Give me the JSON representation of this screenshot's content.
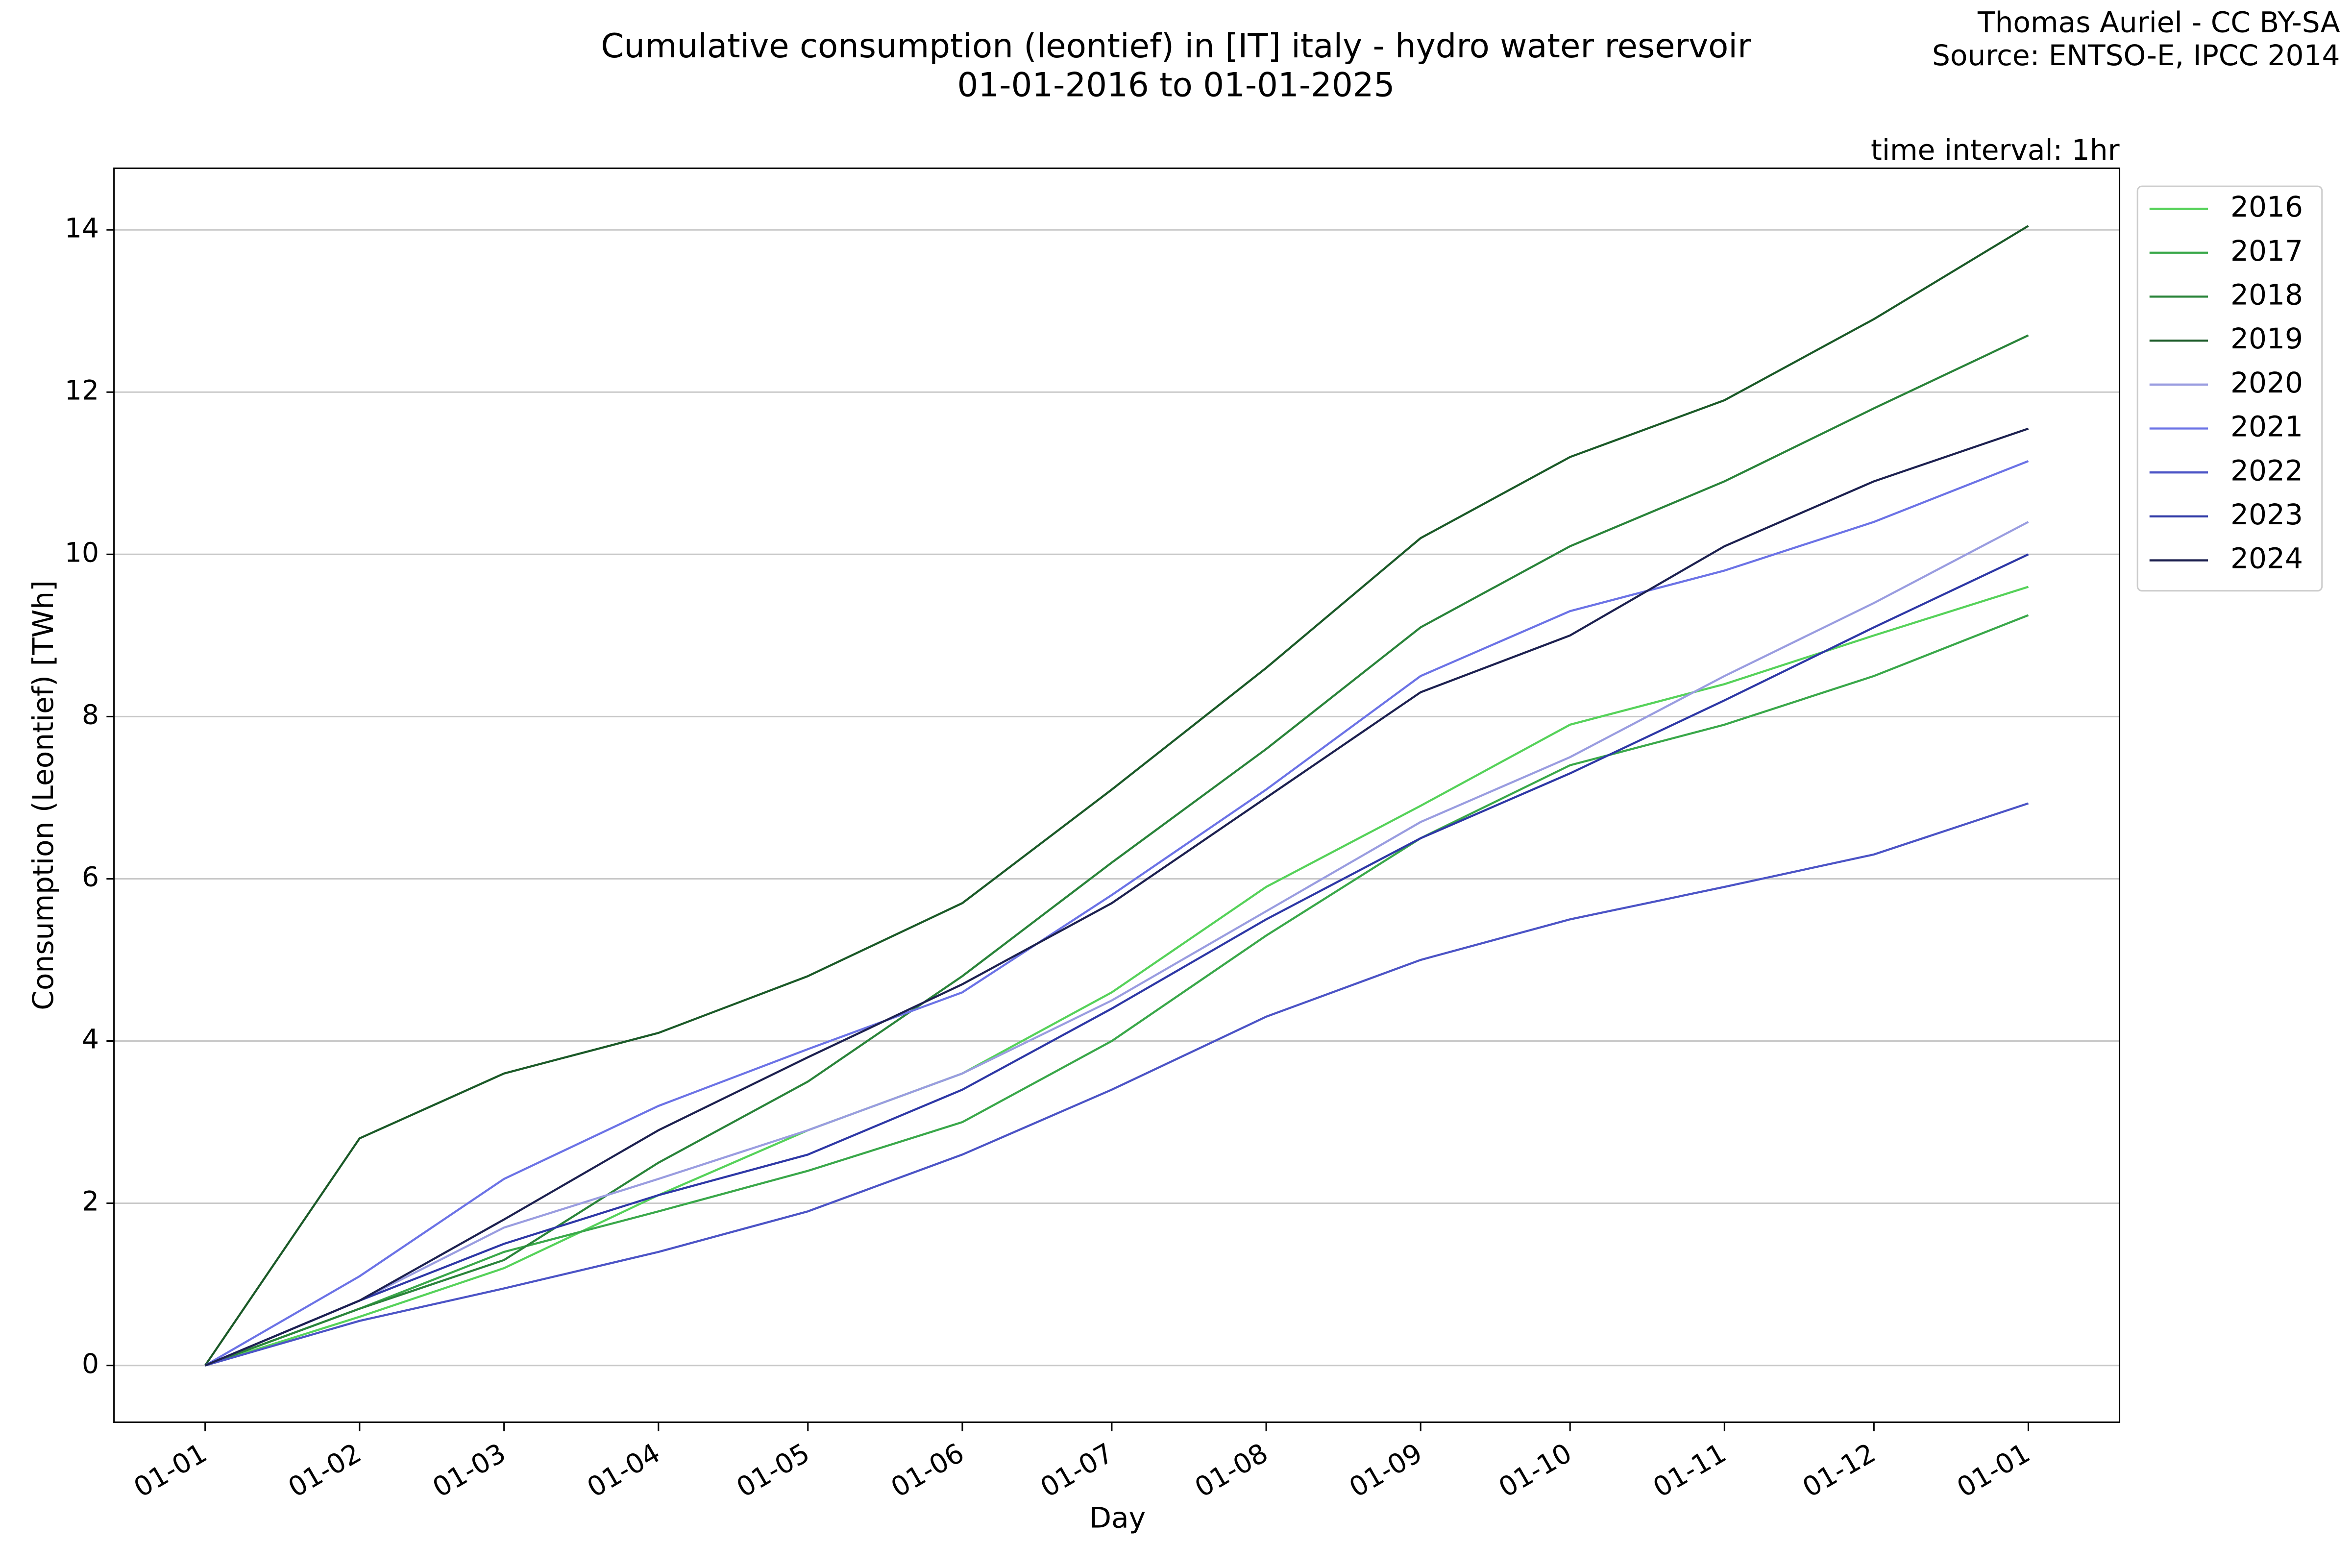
{
  "chart_data": {
    "type": "line",
    "title": "Cumulative consumption (leontief) in [IT] italy - hydro water reservoir",
    "subtitle": "01-01-2016 to 01-01-2025",
    "author": "Thomas Auriel - CC BY-SA",
    "source": "Source: ENTSO-E, IPCC 2014",
    "annotation": "time interval: 1hr",
    "x_label": "Day",
    "y_label": "Consumption (Leontief) [TWh]",
    "x": [
      0,
      31,
      60,
      91,
      121,
      152,
      182,
      213,
      244,
      274,
      305,
      335,
      366
    ],
    "series": [
      {
        "name": "2016",
        "color": "#56d25a",
        "values": [
          0,
          0.6,
          1.2,
          2.1,
          2.9,
          3.6,
          4.6,
          5.9,
          6.9,
          7.9,
          8.4,
          9.0,
          9.6
        ]
      },
      {
        "name": "2017",
        "color": "#3aa84a",
        "values": [
          0,
          0.7,
          1.4,
          1.9,
          2.4,
          3.0,
          4.0,
          5.3,
          6.5,
          7.4,
          7.9,
          8.5,
          9.25
        ]
      },
      {
        "name": "2018",
        "color": "#2a843a",
        "values": [
          0,
          0.7,
          1.3,
          2.5,
          3.5,
          4.8,
          6.2,
          7.6,
          9.1,
          10.1,
          10.9,
          11.8,
          12.7
        ]
      },
      {
        "name": "2019",
        "color": "#1b5a28",
        "values": [
          0,
          2.8,
          3.6,
          4.1,
          4.8,
          5.7,
          7.1,
          8.6,
          10.2,
          11.2,
          11.9,
          12.9,
          14.05
        ]
      },
      {
        "name": "2020",
        "color": "#9a9de0",
        "values": [
          0,
          0.8,
          1.7,
          2.3,
          2.9,
          3.6,
          4.5,
          5.6,
          6.7,
          7.5,
          8.5,
          9.4,
          10.4
        ]
      },
      {
        "name": "2021",
        "color": "#6c73e6",
        "values": [
          0,
          1.1,
          2.3,
          3.2,
          3.9,
          4.6,
          5.8,
          7.1,
          8.5,
          9.3,
          9.8,
          10.4,
          11.15
        ]
      },
      {
        "name": "2022",
        "color": "#4c54c6",
        "values": [
          0,
          0.55,
          0.95,
          1.4,
          1.9,
          2.6,
          3.4,
          4.3,
          5.0,
          5.5,
          5.9,
          6.3,
          6.93
        ]
      },
      {
        "name": "2023",
        "color": "#2e38a6",
        "values": [
          0,
          0.8,
          1.5,
          2.1,
          2.6,
          3.4,
          4.4,
          5.5,
          6.5,
          7.3,
          8.2,
          9.1,
          10.0
        ]
      },
      {
        "name": "2024",
        "color": "#1d2150",
        "values": [
          0,
          0.8,
          1.8,
          2.9,
          3.8,
          4.7,
          5.7,
          7.0,
          8.3,
          9.0,
          10.1,
          10.9,
          11.55
        ]
      }
    ],
    "xlim": [
      -18.3,
      384.3
    ],
    "xticks": [
      {
        "value": 0,
        "label": "01-01"
      },
      {
        "value": 31,
        "label": "01-02"
      },
      {
        "value": 60,
        "label": "01-03"
      },
      {
        "value": 91,
        "label": "01-04"
      },
      {
        "value": 121,
        "label": "01-05"
      },
      {
        "value": 152,
        "label": "01-06"
      },
      {
        "value": 182,
        "label": "01-07"
      },
      {
        "value": 213,
        "label": "01-08"
      },
      {
        "value": 244,
        "label": "01-09"
      },
      {
        "value": 274,
        "label": "01-10"
      },
      {
        "value": 305,
        "label": "01-11"
      },
      {
        "value": 335,
        "label": "01-12"
      },
      {
        "value": 366,
        "label": "01-01"
      }
    ],
    "ylim": [
      -0.7,
      14.76
    ],
    "yticks": [
      0,
      2,
      4,
      6,
      8,
      10,
      12,
      14
    ],
    "grid": true,
    "legend": "outside upper right"
  }
}
